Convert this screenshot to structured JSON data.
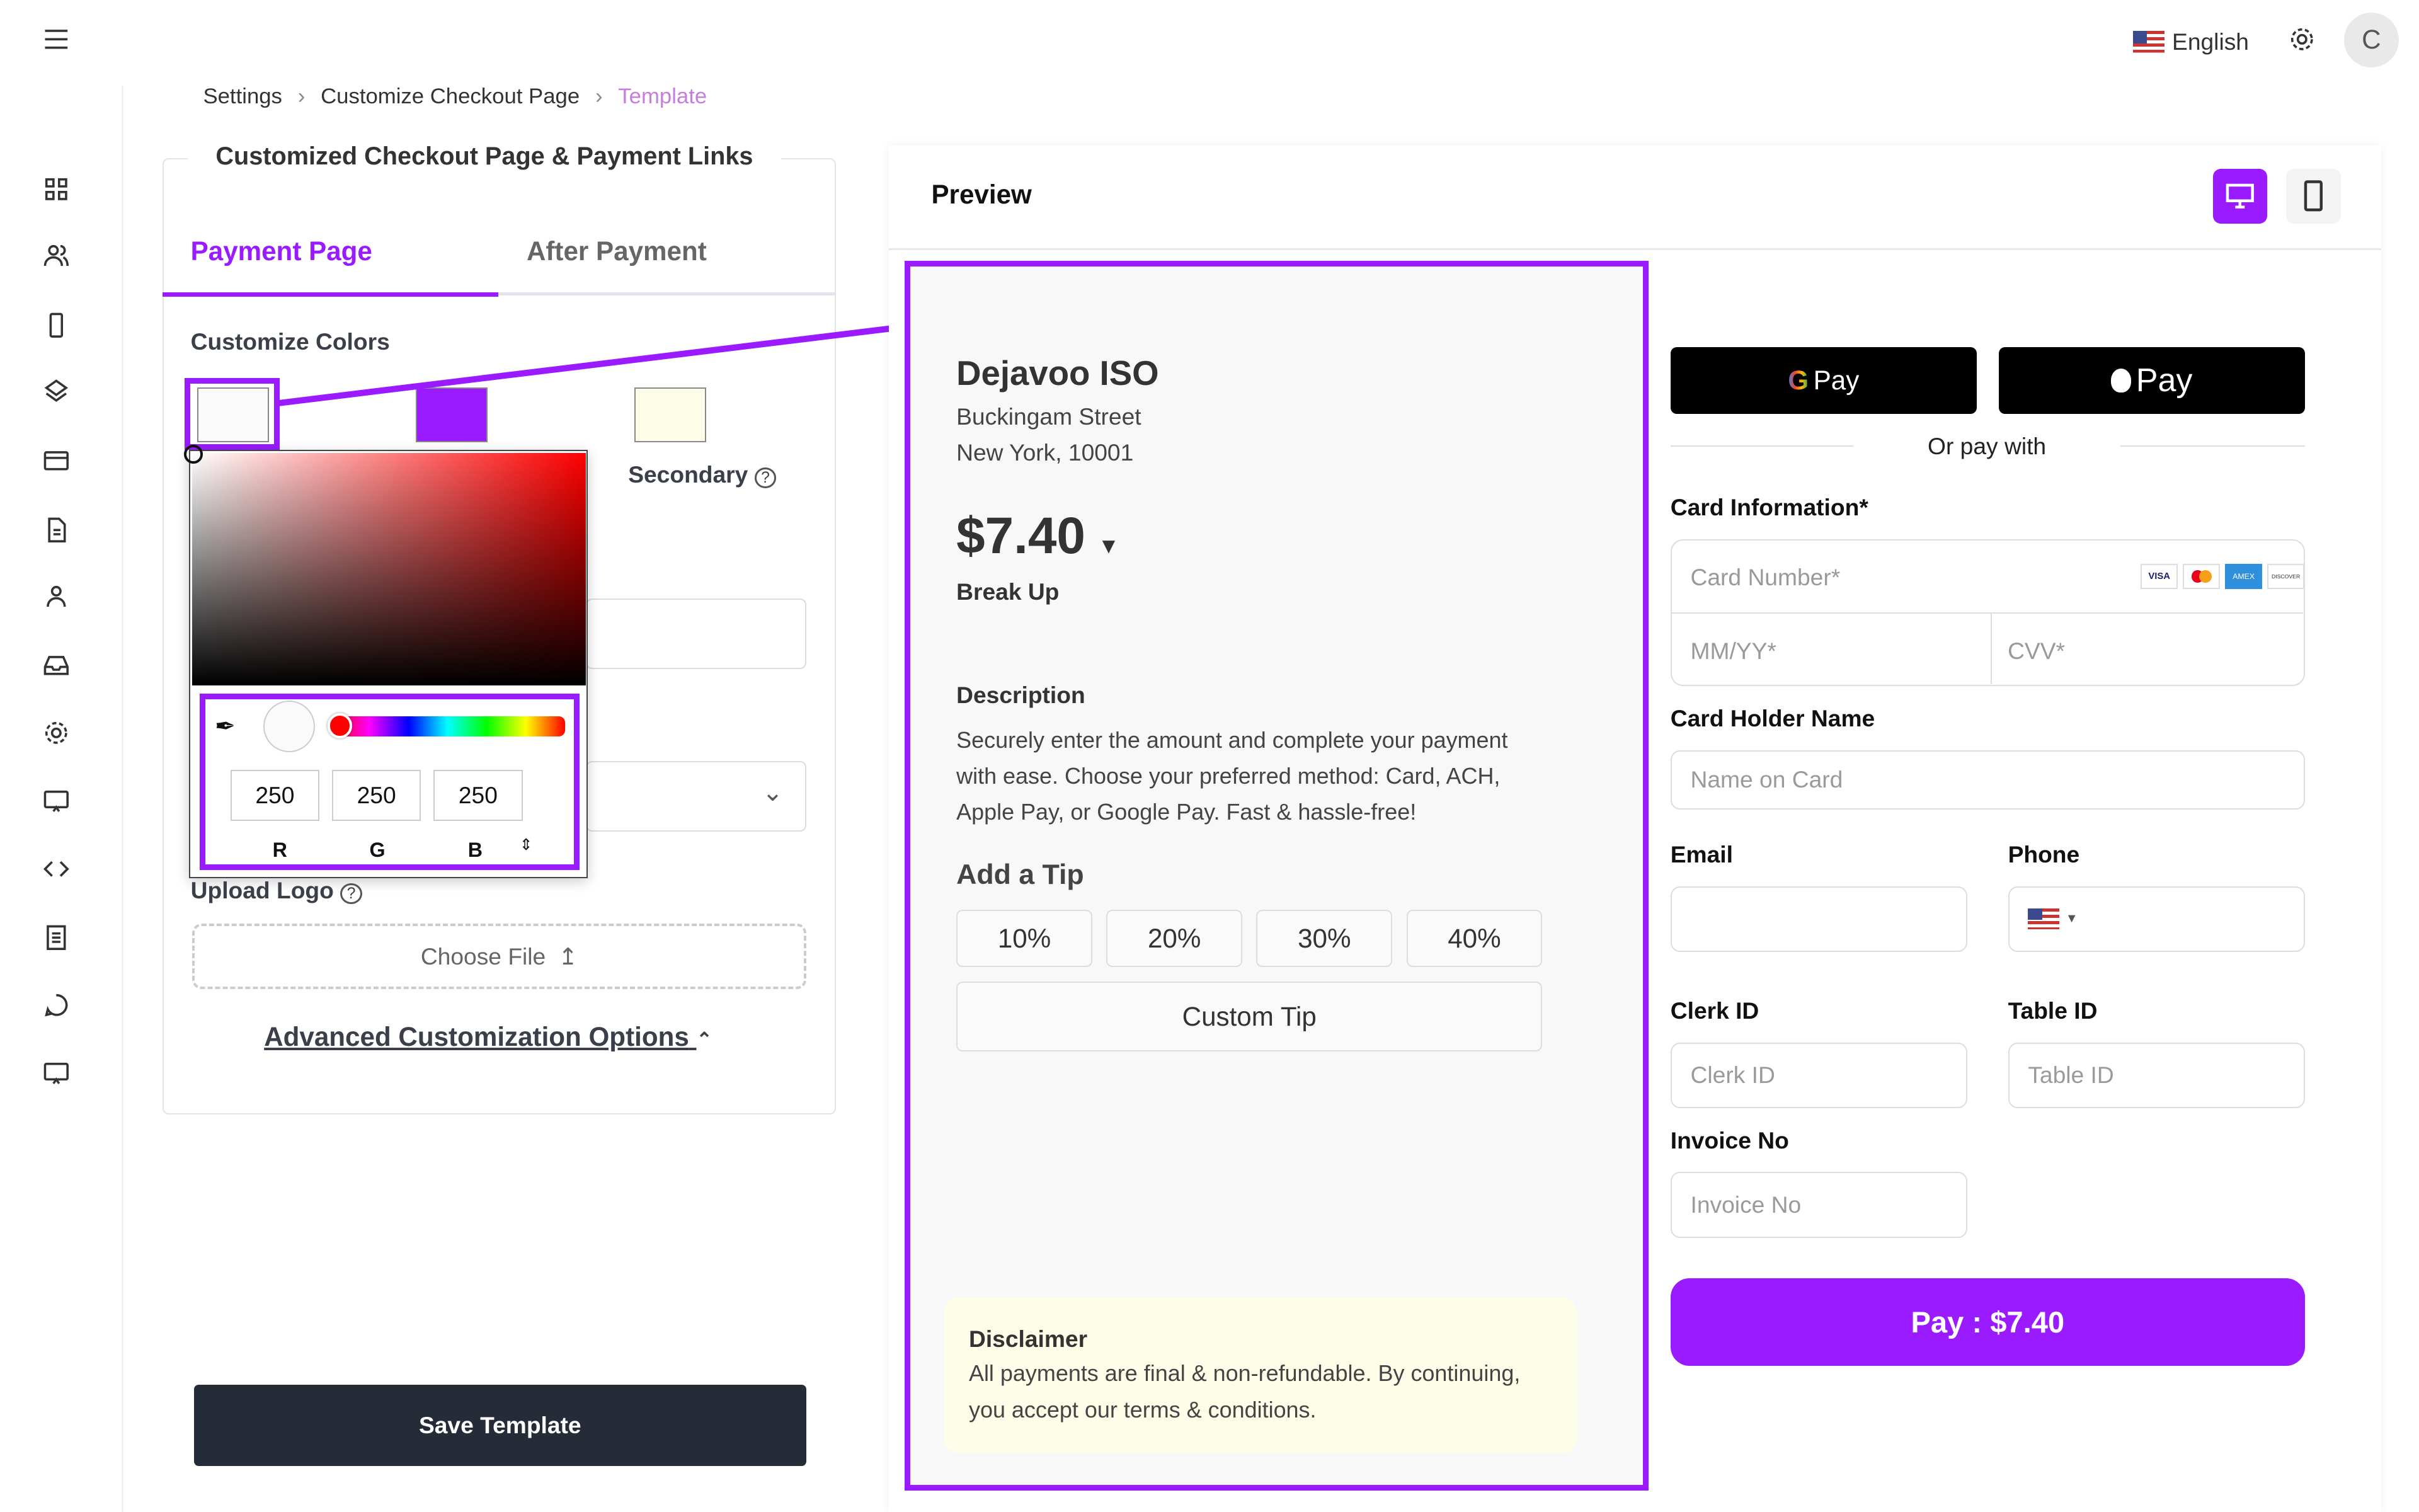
{
  "header": {
    "language": "English",
    "avatar_initial": "C"
  },
  "breadcrumb": {
    "items": [
      "Settings",
      "Customize Checkout Page",
      "Template"
    ],
    "separator": "›"
  },
  "left_panel": {
    "title": "Customized Checkout Page & Payment Links",
    "tabs": [
      {
        "label": "Payment Page",
        "active": true
      },
      {
        "label": "After Payment",
        "active": false
      }
    ],
    "customize_colors_label": "Customize Colors",
    "swatches": [
      {
        "color": "#fafafa",
        "selected": true
      },
      {
        "color": "#9a1bff"
      },
      {
        "color": "#fefee8",
        "label": "Secondary"
      }
    ],
    "color_picker": {
      "r": "250",
      "g": "250",
      "b": "250",
      "r_label": "R",
      "g_label": "G",
      "b_label": "B",
      "hue_color": "#ff0000"
    },
    "upload_logo_label": "Upload Logo",
    "choose_file_label": "Choose File",
    "advanced_options_label": "Advanced Customization Options",
    "save_button": "Save Template"
  },
  "preview": {
    "title": "Preview",
    "merchant_name": "Dejavoo ISO",
    "address_line1": "Buckingam Street",
    "address_line2": "New York, 10001",
    "amount": "$7.40",
    "break_up": "Break Up",
    "description_title": "Description",
    "description": "Securely enter the amount and complete your payment with ease. Choose your preferred method: Card, ACH, Apple Pay, or Google Pay. Fast & hassle-free!",
    "tip_title": "Add a Tip",
    "tips": [
      "10%",
      "20%",
      "30%",
      "40%"
    ],
    "custom_tip": "Custom Tip",
    "disclaimer_title": "Disclaimer",
    "disclaimer": "All payments are final & non-refundable. By continuing, you accept our terms & conditions.",
    "gpay_label": "Pay",
    "applepay_label": "Pay",
    "or_pay_with": "Or pay with",
    "card_info_label": "Card Information*",
    "card_number_placeholder": "Card Number*",
    "card_brands": [
      "VISA",
      "MC",
      "AMEX",
      "DISCOVER"
    ],
    "expiry_placeholder": "MM/YY*",
    "cvv_placeholder": "CVV*",
    "card_holder_label": "Card Holder Name",
    "card_holder_placeholder": "Name on Card",
    "email_label": "Email",
    "phone_label": "Phone",
    "clerk_label": "Clerk ID",
    "clerk_placeholder": "Clerk ID",
    "table_label": "Table ID",
    "table_placeholder": "Table ID",
    "invoice_label": "Invoice No",
    "invoice_placeholder": "Invoice No",
    "pay_button": "Pay : $7.40"
  },
  "colors": {
    "accent": "#9a1bff",
    "dark_button": "#252b37",
    "disclaimer_bg": "#fefee8"
  }
}
